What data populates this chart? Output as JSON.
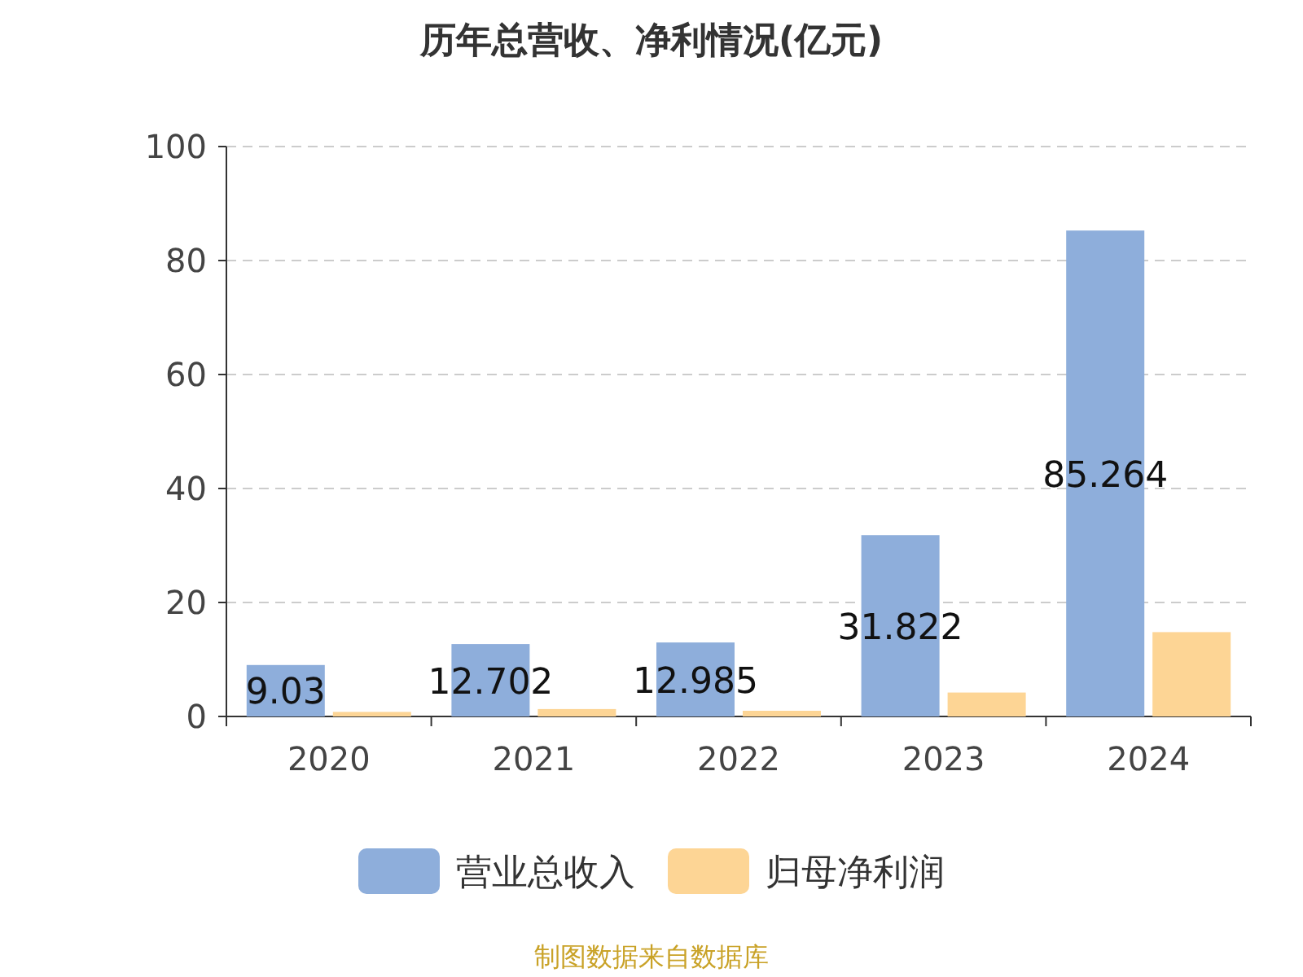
{
  "chart_data": {
    "type": "bar",
    "title": "历年总营收、净利情况(亿元)",
    "categories": [
      "2020",
      "2021",
      "2022",
      "2023",
      "2024"
    ],
    "series": [
      {
        "name": "营业总收入",
        "color": "#8eaedb",
        "values": [
          9.03,
          12.702,
          12.985,
          31.822,
          85.264
        ],
        "value_labels": [
          "9.03",
          "12.702",
          "12.985",
          "31.822",
          "85.264"
        ]
      },
      {
        "name": "归母净利润",
        "color": "#fdd595",
        "values": [
          0.8,
          1.3,
          1.0,
          4.2,
          14.8
        ]
      }
    ],
    "ylim": [
      0,
      100
    ],
    "yticks": [
      0,
      20,
      40,
      60,
      80,
      100
    ],
    "grid": "y",
    "legend": "bottom",
    "annotations": [
      "制图数据来自数据库"
    ]
  }
}
